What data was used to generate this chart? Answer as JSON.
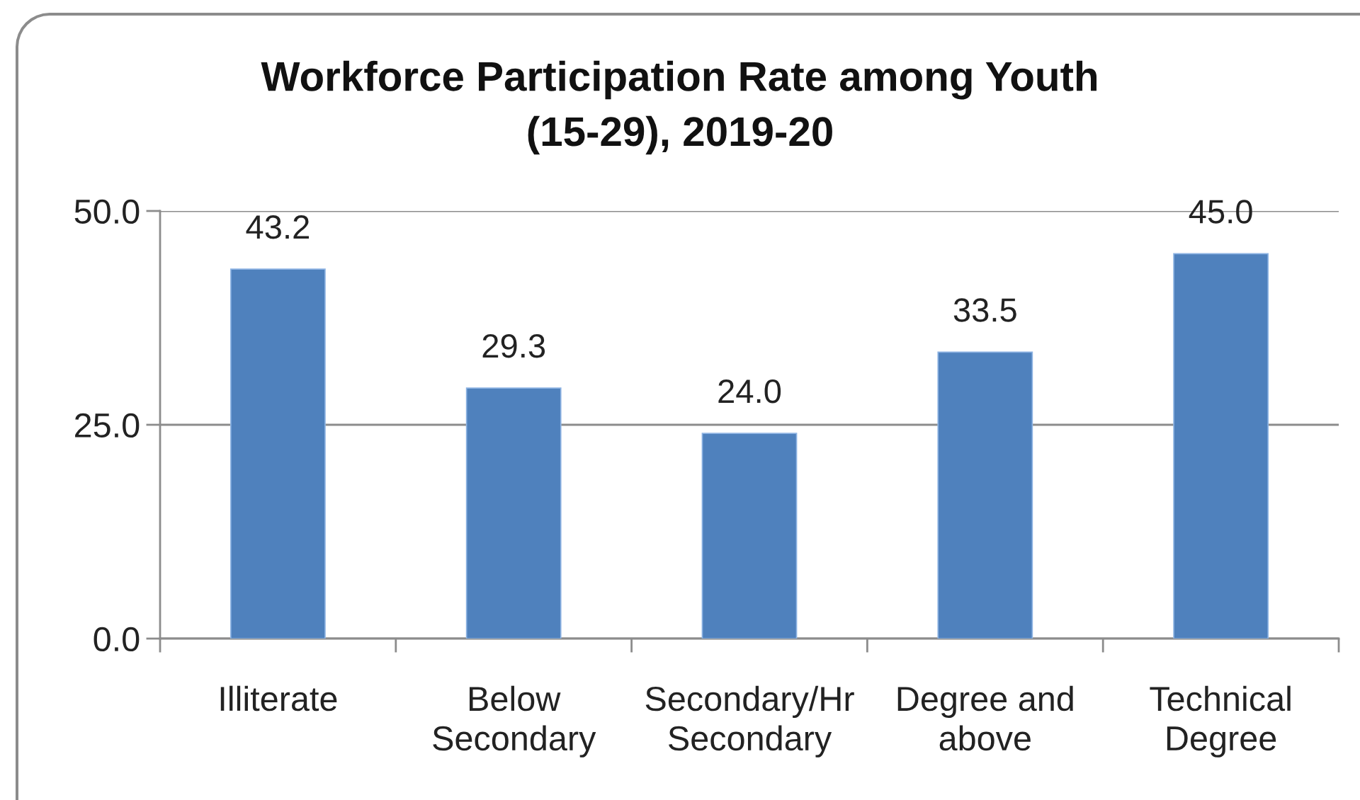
{
  "chart_data": {
    "type": "bar",
    "title": "Workforce Participation Rate among Youth (15-29), 2019-20",
    "categories": [
      "Illiterate",
      "Below Secondary",
      "Secondary/Hr Secondary",
      "Degree and above",
      "Technical Degree"
    ],
    "values": [
      43.2,
      29.3,
      24.0,
      33.5,
      45.0
    ],
    "color": "#4f81bd",
    "value_labels": [
      "43.2",
      "29.3",
      "24.0",
      "33.5",
      "45.0"
    ],
    "ylim": [
      0,
      50
    ],
    "yticks": [
      {
        "value": 0,
        "label": "0.0"
      },
      {
        "value": 25,
        "label": "25.0"
      },
      {
        "value": 50,
        "label": "50.0"
      }
    ],
    "grid": "y"
  }
}
